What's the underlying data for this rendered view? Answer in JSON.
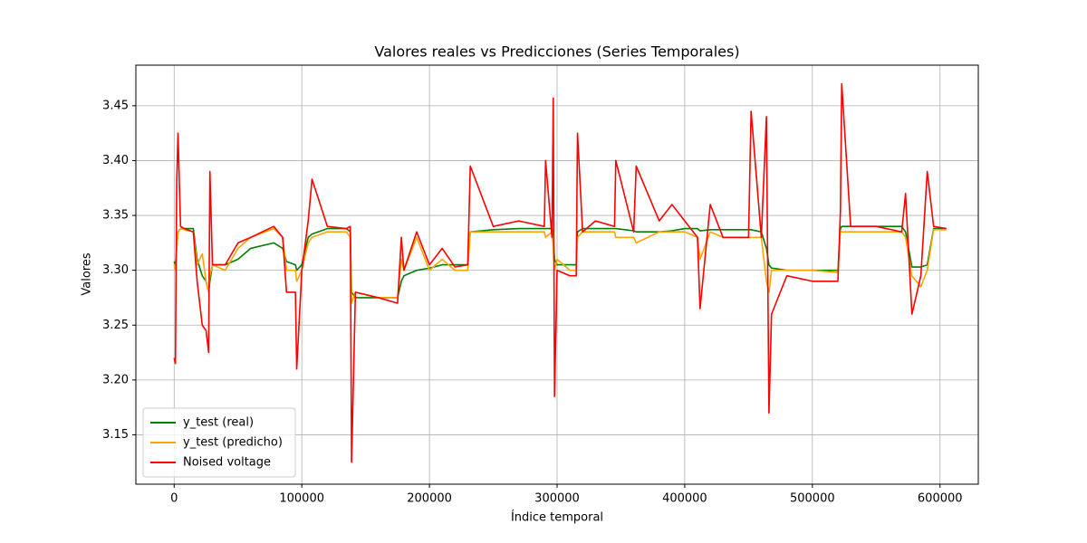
{
  "chart_data": {
    "type": "line",
    "title": "Valores reales vs Predicciones (Series Temporales)",
    "xlabel": "Índice temporal",
    "ylabel": "Valores",
    "x": [
      0,
      1000,
      2000,
      3000,
      5000,
      8000,
      15000,
      18000,
      22000,
      25000,
      27000,
      28000,
      30000,
      40000,
      50000,
      60000,
      78000,
      85000,
      88000,
      95000,
      96000,
      100000,
      105000,
      108000,
      120000,
      135000,
      138000,
      139000,
      142000,
      160000,
      175000,
      178000,
      180000,
      190000,
      200000,
      210000,
      220000,
      230000,
      232000,
      250000,
      270000,
      290000,
      291000,
      296000,
      297000,
      298000,
      300000,
      310000,
      315000,
      316000,
      320000,
      330000,
      345000,
      346000,
      360000,
      362000,
      380000,
      390000,
      400000,
      410000,
      412000,
      420000,
      430000,
      450000,
      452000,
      460000,
      464000,
      466000,
      468000,
      480000,
      500000,
      520000,
      522000,
      523000,
      530000,
      550000,
      570000,
      573000,
      578000,
      585000,
      590000,
      595000,
      605000
    ],
    "series": [
      {
        "name": "y_test (real)",
        "color": "#008000",
        "values": [
          3.308,
          3.305,
          3.32,
          3.335,
          3.338,
          3.338,
          3.338,
          3.31,
          3.295,
          3.29,
          3.28,
          3.29,
          3.305,
          3.305,
          3.31,
          3.32,
          3.325,
          3.32,
          3.308,
          3.305,
          3.3,
          3.305,
          3.33,
          3.333,
          3.338,
          3.338,
          3.335,
          3.28,
          3.275,
          3.275,
          3.275,
          3.29,
          3.295,
          3.3,
          3.302,
          3.305,
          3.305,
          3.305,
          3.335,
          3.337,
          3.338,
          3.338,
          3.338,
          3.338,
          3.33,
          3.31,
          3.305,
          3.305,
          3.305,
          3.335,
          3.338,
          3.338,
          3.338,
          3.338,
          3.336,
          3.335,
          3.335,
          3.336,
          3.338,
          3.338,
          3.336,
          3.337,
          3.337,
          3.337,
          3.337,
          3.335,
          3.32,
          3.305,
          3.302,
          3.3,
          3.3,
          3.3,
          3.338,
          3.34,
          3.34,
          3.34,
          3.34,
          3.335,
          3.303,
          3.303,
          3.305,
          3.338,
          3.338
        ]
      },
      {
        "name": "y_test (predicho)",
        "color": "#ffa500",
        "values": [
          3.305,
          3.3,
          3.32,
          3.335,
          3.338,
          3.337,
          3.335,
          3.305,
          3.315,
          3.29,
          3.28,
          3.295,
          3.305,
          3.3,
          3.32,
          3.33,
          3.338,
          3.33,
          3.3,
          3.3,
          3.29,
          3.3,
          3.325,
          3.33,
          3.335,
          3.335,
          3.33,
          3.27,
          3.28,
          3.275,
          3.275,
          3.31,
          3.3,
          3.33,
          3.3,
          3.31,
          3.3,
          3.3,
          3.335,
          3.335,
          3.335,
          3.335,
          3.33,
          3.335,
          3.32,
          3.3,
          3.31,
          3.3,
          3.3,
          3.33,
          3.335,
          3.335,
          3.335,
          3.33,
          3.33,
          3.325,
          3.335,
          3.335,
          3.335,
          3.33,
          3.31,
          3.335,
          3.33,
          3.33,
          3.33,
          3.33,
          3.29,
          3.28,
          3.3,
          3.3,
          3.3,
          3.298,
          3.336,
          3.335,
          3.335,
          3.335,
          3.335,
          3.33,
          3.295,
          3.285,
          3.3,
          3.337,
          3.337
        ]
      },
      {
        "name": "Noised voltage",
        "color": "#ff0000",
        "values": [
          3.22,
          3.215,
          3.38,
          3.425,
          3.34,
          3.338,
          3.335,
          3.29,
          3.25,
          3.245,
          3.225,
          3.39,
          3.305,
          3.305,
          3.325,
          3.33,
          3.34,
          3.33,
          3.28,
          3.28,
          3.21,
          3.3,
          3.345,
          3.383,
          3.34,
          3.338,
          3.34,
          3.125,
          3.28,
          3.275,
          3.27,
          3.33,
          3.3,
          3.335,
          3.305,
          3.32,
          3.303,
          3.305,
          3.395,
          3.34,
          3.345,
          3.34,
          3.4,
          3.33,
          3.457,
          3.185,
          3.3,
          3.295,
          3.295,
          3.425,
          3.335,
          3.345,
          3.34,
          3.4,
          3.335,
          3.395,
          3.345,
          3.36,
          3.345,
          3.33,
          3.265,
          3.36,
          3.33,
          3.33,
          3.445,
          3.33,
          3.44,
          3.17,
          3.26,
          3.295,
          3.29,
          3.29,
          3.355,
          3.47,
          3.34,
          3.34,
          3.335,
          3.37,
          3.26,
          3.295,
          3.39,
          3.34,
          3.338
        ]
      }
    ],
    "xlim": [
      -30000,
      630000
    ],
    "xticks": [
      0,
      100000,
      200000,
      300000,
      400000,
      500000,
      600000
    ],
    "ylim": [
      3.105,
      3.487
    ],
    "yticks": [
      3.15,
      {
        "value": 3.2,
        "label": "3.20"
      },
      3.25,
      {
        "value": 3.3,
        "label": "3.30"
      },
      3.35,
      {
        "value": 3.4,
        "label": "3.40"
      },
      3.45
    ],
    "grid": true,
    "legend": "lower left"
  }
}
